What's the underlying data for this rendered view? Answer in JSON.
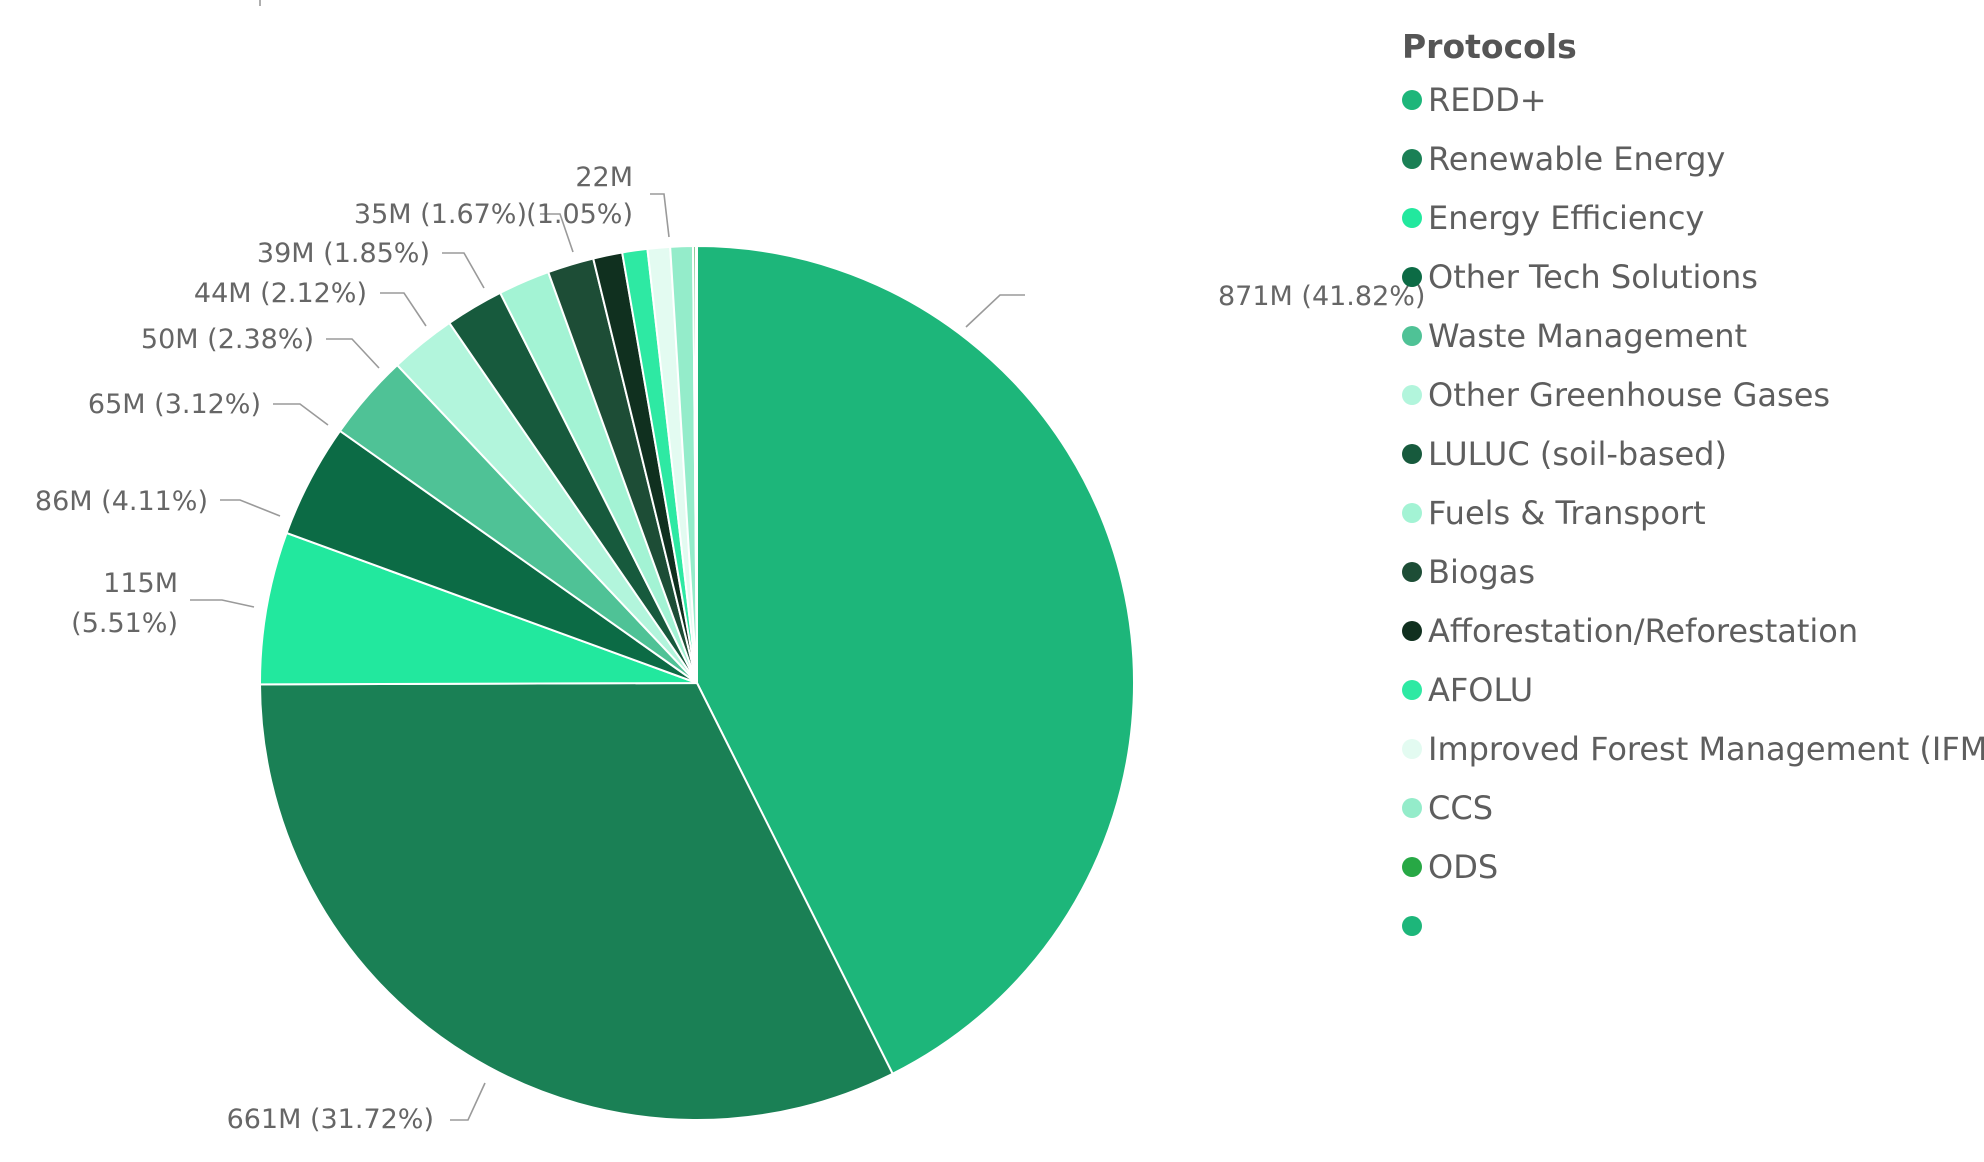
{
  "chart_data": {
    "type": "pie",
    "legend_title": "Protocols",
    "legend_position": "right",
    "slices": [
      {
        "name": "REDD+",
        "value": 871,
        "percent": 41.82,
        "value_label": "871M",
        "percent_label": "(41.82%)",
        "color": "#1db67a"
      },
      {
        "name": "Renewable Energy",
        "value": 661,
        "percent": 31.72,
        "value_label": "661M",
        "percent_label": "(31.72%)",
        "color": "#1a8055"
      },
      {
        "name": "Energy Efficiency",
        "value": 115,
        "percent": 5.51,
        "value_label": "115M",
        "percent_label": "(5.51%)",
        "color": "#22e89e"
      },
      {
        "name": "Other Tech Solutions",
        "value": 86,
        "percent": 4.11,
        "value_label": "86M",
        "percent_label": "(4.11%)",
        "color": "#0c6b45"
      },
      {
        "name": "Waste Management",
        "value": 65,
        "percent": 3.12,
        "value_label": "65M",
        "percent_label": "(3.12%)",
        "color": "#4fc296"
      },
      {
        "name": "Other Greenhouse Gases",
        "value": 50,
        "percent": 2.38,
        "value_label": "50M",
        "percent_label": "(2.38%)",
        "color": "#b2f5dc"
      },
      {
        "name": "LULUC (soil-based)",
        "value": 44,
        "percent": 2.12,
        "value_label": "44M",
        "percent_label": "(2.12%)",
        "color": "#175a3d"
      },
      {
        "name": "Fuels & Transport",
        "value": 39,
        "percent": 1.85,
        "value_label": "39M",
        "percent_label": "(1.85%)",
        "color": "#a3f3d4"
      },
      {
        "name": "Biogas",
        "value": 35,
        "percent": 1.67,
        "value_label": "35M",
        "percent_label": "(1.67%)",
        "color": "#1d4d36"
      },
      {
        "name": "Afforestation/Reforestation",
        "value": 22,
        "percent": 1.05,
        "value_label": "22M",
        "percent_label": "(1.05%)",
        "color": "#10301f"
      },
      {
        "name": "AFOLU",
        "value": 19,
        "percent": 0.9,
        "value_label": "",
        "percent_label": "",
        "color": "#2ee9a3"
      },
      {
        "name": "Improved Forest Management (IFM)",
        "value": 17,
        "percent": 0.8,
        "value_label": "",
        "percent_label": "",
        "color": "#e3fbf1"
      },
      {
        "name": "CCS",
        "value": 17,
        "percent": 0.8,
        "value_label": "",
        "percent_label": "",
        "color": "#94ecca"
      },
      {
        "name": "ODS",
        "value": 2,
        "percent": 0.1,
        "value_label": "",
        "percent_label": "",
        "color": "#27a845"
      },
      {
        "name": "",
        "value": 1,
        "percent": 0.05,
        "value_label": "",
        "percent_label": "",
        "color": "#1db67a"
      }
    ]
  }
}
